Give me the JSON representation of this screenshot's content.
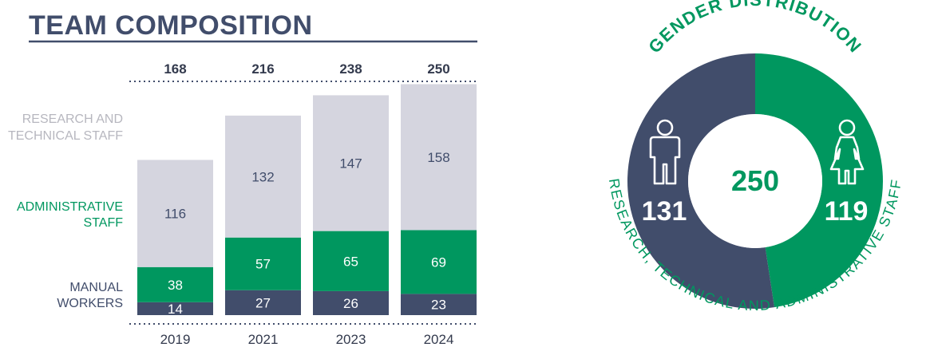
{
  "title": "TEAM COMPOSITION",
  "colors": {
    "navy": "#414d6b",
    "green": "#00975f",
    "grey": "#d5d5df",
    "label_grey": "#b7b7bf",
    "text": "#333a4d"
  },
  "chart_data": [
    {
      "type": "bar",
      "stacked": true,
      "categories": [
        "2019",
        "2021",
        "2023",
        "2024"
      ],
      "totals": [
        168,
        216,
        238,
        250
      ],
      "series": [
        {
          "name": "MANUAL WORKERS",
          "label_lines": [
            "MANUAL",
            "WORKERS"
          ],
          "values": [
            14,
            27,
            26,
            23
          ],
          "color": "#414d6b",
          "label_color": "#414d6b",
          "value_color": "#ffffff"
        },
        {
          "name": "ADMINISTRATIVE STAFF",
          "label_lines": [
            "ADMINISTRATIVE",
            "STAFF"
          ],
          "values": [
            38,
            57,
            65,
            69
          ],
          "color": "#00975f",
          "label_color": "#00975f",
          "value_color": "#ffffff"
        },
        {
          "name": "RESEARCH AND TECHNICAL STAFF",
          "label_lines": [
            "RESEARCH AND",
            "TECHNICAL STAFF"
          ],
          "values": [
            116,
            132,
            147,
            158
          ],
          "color": "#d5d5df",
          "label_color": "#b7b7bf",
          "value_color": "#414d6b"
        }
      ],
      "ylim": [
        0,
        250
      ]
    },
    {
      "type": "pie",
      "title": "GENDER DISTRIBUTION",
      "subtitle": "RESEARCH, TECHNICAL AND ADMINISTRATIVE STAFF",
      "total": 250,
      "slices": [
        {
          "name": "male",
          "icon": "male-person-icon",
          "value": 131,
          "color": "#414d6b"
        },
        {
          "name": "female",
          "icon": "female-person-icon",
          "value": 119,
          "color": "#00975f"
        }
      ]
    }
  ]
}
